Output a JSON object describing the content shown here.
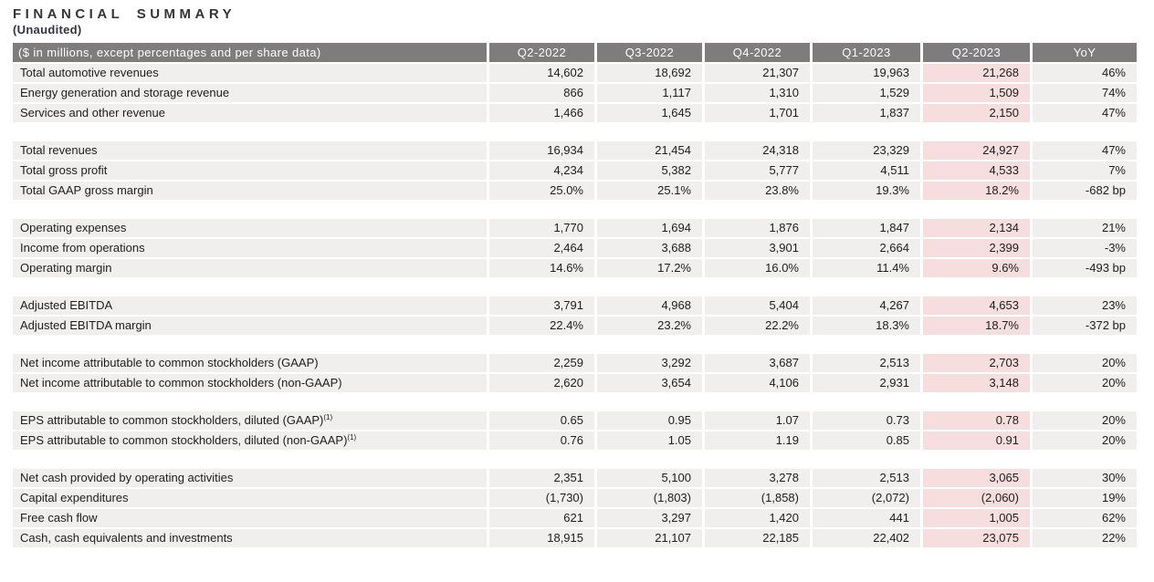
{
  "page": {
    "title": "FINANCIAL SUMMARY",
    "subtitle": "(Unaudited)"
  },
  "colors": {
    "header_bg": "#7e7c7c",
    "row_bg": "#f1efee",
    "highlight_column_bg": "#f5dedd",
    "header_text": "#ffffff",
    "body_text": "#1d1d1d",
    "title_text": "#34343e",
    "page_bg": "#ffffff"
  },
  "table": {
    "header": {
      "label": "($ in millions, except percentages and per share data)",
      "columns": [
        "Q2-2022",
        "Q3-2022",
        "Q4-2022",
        "Q1-2023",
        "Q2-2023",
        "YoY"
      ],
      "highlight_column": "Q2-2023",
      "highlight_column_index": 4
    },
    "groups": [
      {
        "rows": [
          {
            "label": "Total automotive revenues",
            "values": [
              "14,602",
              "18,692",
              "21,307",
              "19,963",
              "21,268",
              "46%"
            ]
          },
          {
            "label": "Energy generation and storage revenue",
            "values": [
              "866",
              "1,117",
              "1,310",
              "1,529",
              "1,509",
              "74%"
            ]
          },
          {
            "label": "Services and other revenue",
            "values": [
              "1,466",
              "1,645",
              "1,701",
              "1,837",
              "2,150",
              "47%"
            ]
          }
        ]
      },
      {
        "rows": [
          {
            "label": "Total revenues",
            "values": [
              "16,934",
              "21,454",
              "24,318",
              "23,329",
              "24,927",
              "47%"
            ]
          },
          {
            "label": "Total gross profit",
            "values": [
              "4,234",
              "5,382",
              "5,777",
              "4,511",
              "4,533",
              "7%"
            ]
          },
          {
            "label": "Total GAAP gross margin",
            "values": [
              "25.0%",
              "25.1%",
              "23.8%",
              "19.3%",
              "18.2%",
              "-682 bp"
            ]
          }
        ]
      },
      {
        "rows": [
          {
            "label": "Operating expenses",
            "values": [
              "1,770",
              "1,694",
              "1,876",
              "1,847",
              "2,134",
              "21%"
            ]
          },
          {
            "label": "Income from operations",
            "values": [
              "2,464",
              "3,688",
              "3,901",
              "2,664",
              "2,399",
              "-3%"
            ]
          },
          {
            "label": "Operating margin",
            "values": [
              "14.6%",
              "17.2%",
              "16.0%",
              "11.4%",
              "9.6%",
              "-493 bp"
            ]
          }
        ]
      },
      {
        "rows": [
          {
            "label": "Adjusted EBITDA",
            "values": [
              "3,791",
              "4,968",
              "5,404",
              "4,267",
              "4,653",
              "23%"
            ]
          },
          {
            "label": "Adjusted EBITDA margin",
            "values": [
              "22.4%",
              "23.2%",
              "22.2%",
              "18.3%",
              "18.7%",
              "-372 bp"
            ]
          }
        ]
      },
      {
        "rows": [
          {
            "label": "Net income attributable to common stockholders (GAAP)",
            "values": [
              "2,259",
              "3,292",
              "3,687",
              "2,513",
              "2,703",
              "20%"
            ]
          },
          {
            "label": "Net income attributable to common stockholders (non-GAAP)",
            "values": [
              "2,620",
              "3,654",
              "4,106",
              "2,931",
              "3,148",
              "20%"
            ]
          }
        ]
      },
      {
        "rows": [
          {
            "label": "EPS attributable to common stockholders, diluted (GAAP)",
            "sup": "(1)",
            "values": [
              "0.65",
              "0.95",
              "1.07",
              "0.73",
              "0.78",
              "20%"
            ]
          },
          {
            "label": "EPS attributable to common stockholders, diluted (non-GAAP)",
            "sup": "(1)",
            "values": [
              "0.76",
              "1.05",
              "1.19",
              "0.85",
              "0.91",
              "20%"
            ]
          }
        ]
      },
      {
        "rows": [
          {
            "label": "Net cash provided by operating activities",
            "values": [
              "2,351",
              "5,100",
              "3,278",
              "2,513",
              "3,065",
              "30%"
            ]
          },
          {
            "label": "Capital expenditures",
            "values": [
              "(1,730)",
              "(1,803)",
              "(1,858)",
              "(2,072)",
              "(2,060)",
              "19%"
            ]
          },
          {
            "label": "Free cash flow",
            "values": [
              "621",
              "3,297",
              "1,420",
              "441",
              "1,005",
              "62%"
            ]
          },
          {
            "label": "Cash, cash equivalents and investments",
            "values": [
              "18,915",
              "21,107",
              "22,185",
              "22,402",
              "23,075",
              "22%"
            ]
          }
        ]
      }
    ]
  }
}
